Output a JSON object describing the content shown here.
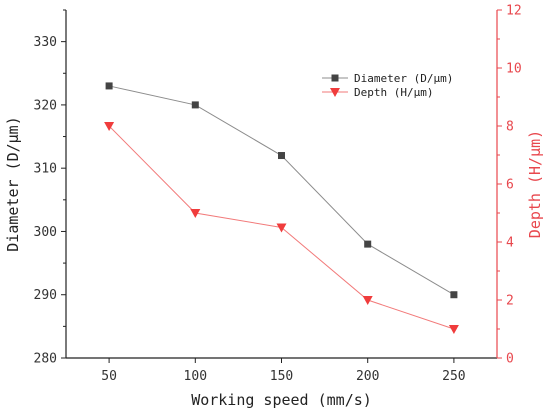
{
  "chart_data": {
    "type": "line",
    "xlabel": "Working speed (mm/s)",
    "ylabel_left": "Diameter (D/μm)",
    "ylabel_right": "Depth (H/μm)",
    "x": [
      50,
      100,
      150,
      200,
      250
    ],
    "xlim": [
      25,
      275
    ],
    "x_ticks": [
      50,
      100,
      150,
      200,
      250
    ],
    "ylim_left": [
      280,
      335
    ],
    "y_ticks_left": [
      280,
      290,
      300,
      310,
      320,
      330
    ],
    "ylim_right": [
      0,
      12
    ],
    "y_ticks_right": [
      0,
      2,
      4,
      6,
      8,
      10,
      12
    ],
    "legend_position": "top-right",
    "grid": false,
    "series": [
      {
        "name": "Diameter (D/μm)",
        "axis": "left",
        "marker": "square",
        "color": "#444444",
        "line_color": "#8c8c8c",
        "values": [
          323,
          320,
          312,
          298,
          290
        ]
      },
      {
        "name": "Depth (H/μm)",
        "axis": "right",
        "marker": "triangle-down",
        "color": "#f03c3c",
        "line_color": "#f27a7a",
        "values": [
          8,
          5,
          4.5,
          2,
          1
        ]
      }
    ],
    "colors": {
      "left_axis": "#222222",
      "right_axis": "#e8474d"
    }
  }
}
